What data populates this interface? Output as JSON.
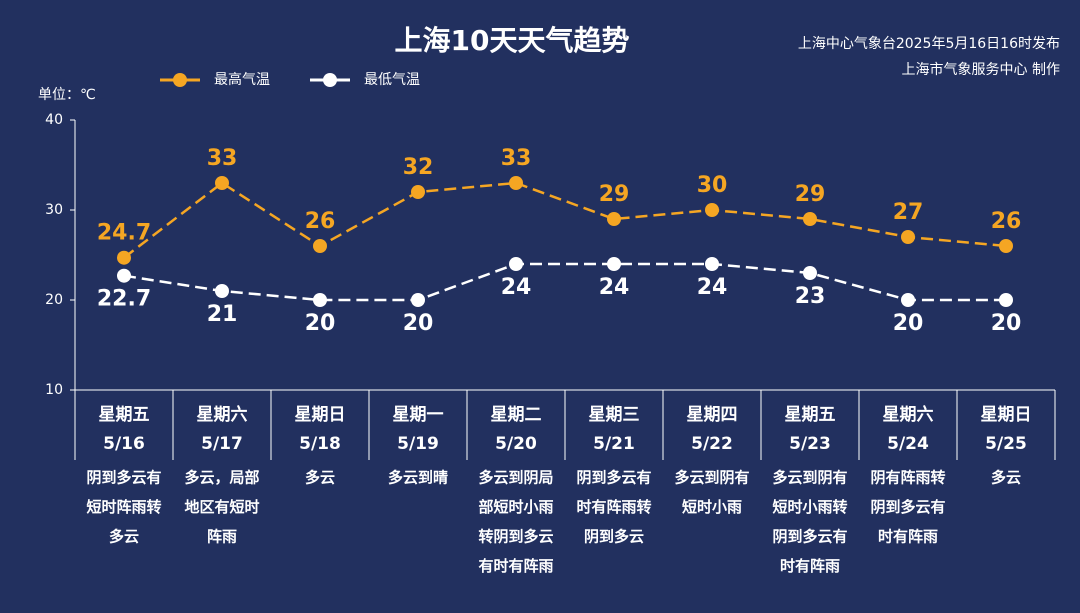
{
  "chart_data": {
    "type": "line",
    "title": "上海10天天气趋势",
    "source": [
      "上海中心气象台2025年5月16日16时发布",
      "上海市气象服务中心 制作"
    ],
    "unit_label": "单位：℃",
    "categories": [
      "5/16",
      "5/17",
      "5/18",
      "5/19",
      "5/20",
      "5/21",
      "5/22",
      "5/23",
      "5/24",
      "5/25"
    ],
    "weekdays": [
      "星期五",
      "星期六",
      "星期日",
      "星期一",
      "星期二",
      "星期三",
      "星期四",
      "星期五",
      "星期六",
      "星期日"
    ],
    "descriptions": [
      [
        "阴到多云有",
        "短时阵雨转",
        "多云"
      ],
      [
        "多云，局部",
        "地区有短时",
        "阵雨"
      ],
      [
        "多云"
      ],
      [
        "多云到晴"
      ],
      [
        "多云到阴局",
        "部短时小雨",
        "转阴到多云",
        "有时有阵雨"
      ],
      [
        "阴到多云有",
        "时有阵雨转",
        "阴到多云"
      ],
      [
        "多云到阴有",
        "短时小雨"
      ],
      [
        "多云到阴有",
        "短时小雨转",
        "阴到多云有",
        "时有阵雨"
      ],
      [
        "阴有阵雨转",
        "阴到多云有",
        "时有阵雨"
      ],
      [
        "多云"
      ]
    ],
    "series": [
      {
        "name": "最高气温",
        "color": "#f5a623",
        "values": [
          24.7,
          33,
          26,
          32,
          33,
          29,
          30,
          29,
          27,
          26
        ]
      },
      {
        "name": "最低气温",
        "color": "#ffffff",
        "values": [
          22.7,
          21,
          20,
          20,
          24,
          24,
          24,
          23,
          20,
          20
        ]
      }
    ],
    "ylim": [
      10,
      40
    ],
    "yticks": [
      10,
      20,
      30,
      40
    ]
  }
}
